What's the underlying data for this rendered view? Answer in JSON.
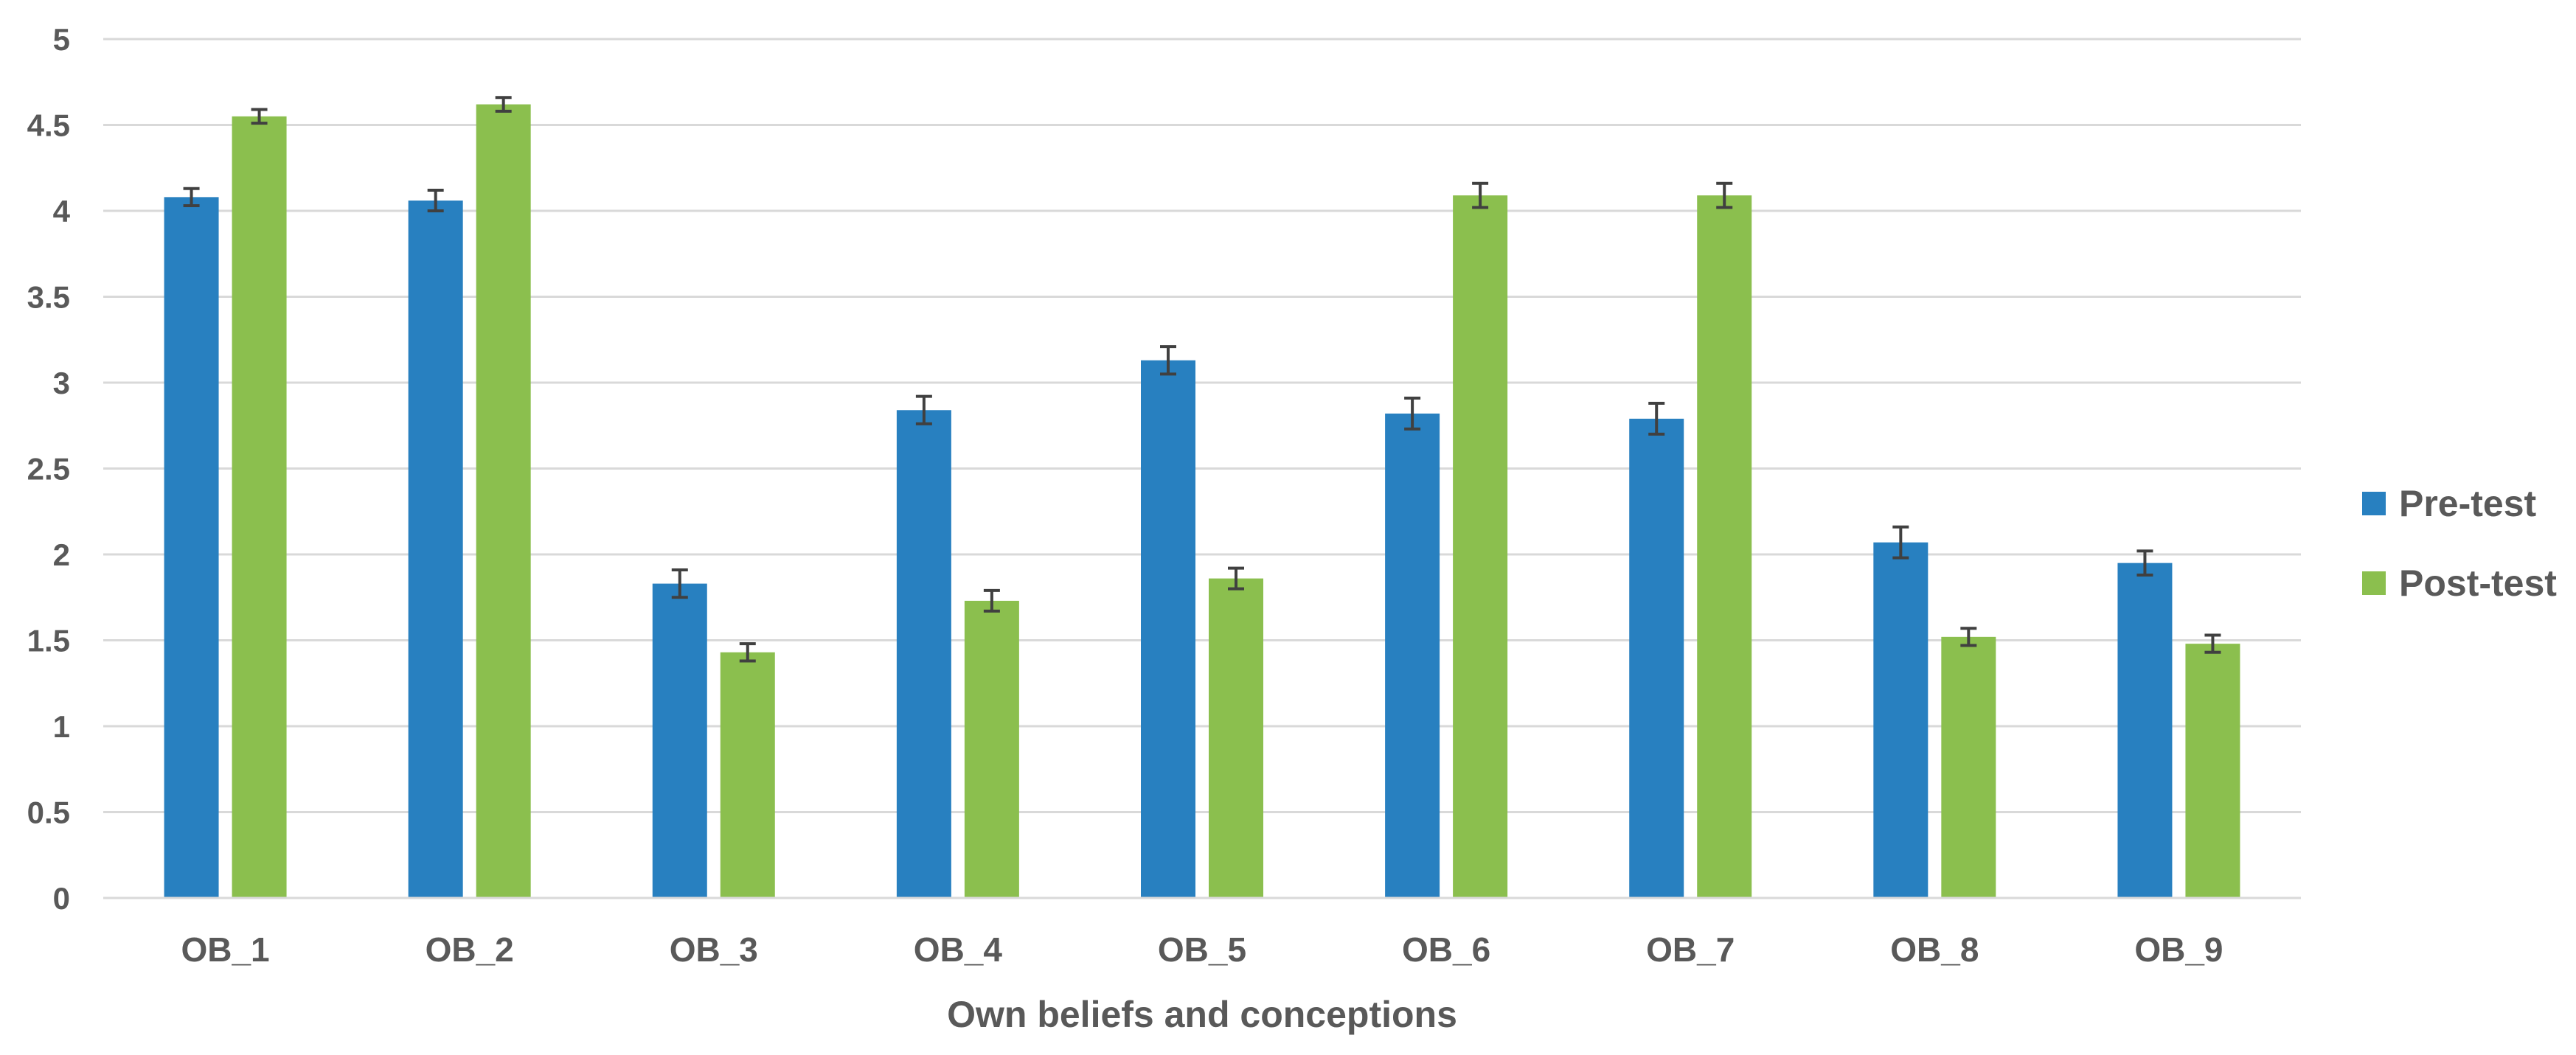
{
  "chart_data": {
    "type": "bar",
    "title": "",
    "xlabel": "Own beliefs and conceptions",
    "ylabel": "",
    "ylim": [
      0,
      5
    ],
    "yticks": [
      0,
      0.5,
      1,
      1.5,
      2,
      2.5,
      3,
      3.5,
      4,
      4.5,
      5
    ],
    "ytick_labels": [
      "0",
      "0.5",
      "1",
      "1.5",
      "2",
      "2.5",
      "3",
      "3.5",
      "4",
      "4.5",
      "5"
    ],
    "categories": [
      "OB_1",
      "OB_2",
      "OB_3",
      "OB_4",
      "OB_5",
      "OB_6",
      "OB_7",
      "OB_8",
      "OB_9"
    ],
    "series": [
      {
        "name": "Pre-test",
        "color": "#2880C0",
        "values": [
          4.08,
          4.06,
          1.83,
          2.84,
          3.13,
          2.82,
          2.79,
          2.07,
          1.95
        ],
        "error": [
          0.05,
          0.06,
          0.08,
          0.08,
          0.08,
          0.09,
          0.09,
          0.09,
          0.07
        ]
      },
      {
        "name": "Post-test",
        "color": "#8BBF4E",
        "values": [
          4.55,
          4.62,
          1.43,
          1.73,
          1.86,
          4.09,
          4.09,
          1.52,
          1.48
        ],
        "error": [
          0.04,
          0.04,
          0.05,
          0.06,
          0.06,
          0.07,
          0.07,
          0.05,
          0.05
        ]
      }
    ],
    "grid": true,
    "gridline_color": "#D9D9D9",
    "legend_position": "right"
  }
}
